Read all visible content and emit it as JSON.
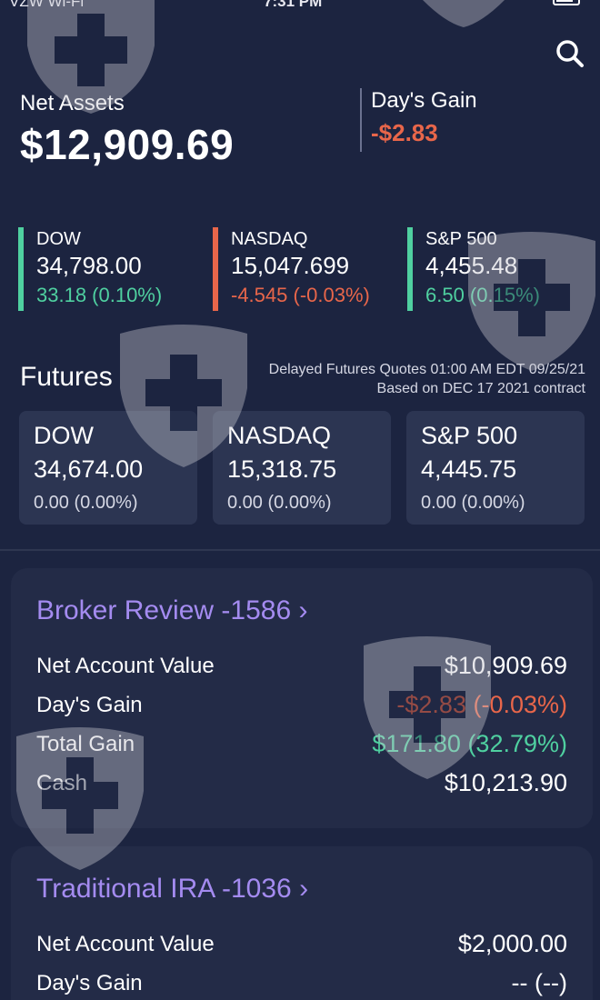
{
  "status_bar": {
    "carrier": "VZW Wi-Fi",
    "time": "7:31 PM"
  },
  "colors": {
    "background": "#1c2440",
    "negative": "#e8664a",
    "positive": "#4fd0a0",
    "accent": "#a48bf0",
    "card": "#232b47"
  },
  "icons": {
    "search": "search-icon",
    "chevron": "chevron-right-icon",
    "watermark": "shield-plus-icon"
  },
  "summary": {
    "net_assets_label": "Net Assets",
    "net_assets_value": "$12,909.69",
    "days_gain_label": "Day's Gain",
    "days_gain_value": "-$2.83"
  },
  "indices": [
    {
      "name": "DOW",
      "price": "34,798.00",
      "change": "33.18 (0.10%)",
      "trend": "up"
    },
    {
      "name": "NASDAQ",
      "price": "15,047.699",
      "change": "-4.545 (-0.03%)",
      "trend": "down"
    },
    {
      "name": "S&P 500",
      "price": "4,455.48",
      "change": "6.50 (0.15%)",
      "trend": "up"
    }
  ],
  "futures": {
    "title": "Futures",
    "note_line1": "Delayed Futures Quotes 01:00 AM EDT 09/25/21",
    "note_line2": "Based on DEC 17 2021 contract",
    "items": [
      {
        "name": "DOW",
        "price": "34,674.00",
        "change": "0.00 (0.00%)"
      },
      {
        "name": "NASDAQ",
        "price": "15,318.75",
        "change": "0.00 (0.00%)"
      },
      {
        "name": "S&P 500",
        "price": "4,445.75",
        "change": "0.00 (0.00%)"
      }
    ]
  },
  "accounts": [
    {
      "title": "Broker Review -1586",
      "rows": [
        {
          "label": "Net Account Value",
          "value": "$10,909.69",
          "tone": "neutral"
        },
        {
          "label": "Day's Gain",
          "value": "-$2.83 (-0.03%)",
          "tone": "negative"
        },
        {
          "label": "Total Gain",
          "value": "$171.80 (32.79%)",
          "tone": "positive"
        },
        {
          "label": "Cash",
          "value": "$10,213.90",
          "tone": "neutral"
        }
      ]
    },
    {
      "title": "Traditional IRA -1036",
      "rows": [
        {
          "label": "Net Account Value",
          "value": "$2,000.00",
          "tone": "neutral"
        },
        {
          "label": "Day's Gain",
          "value": "-- (--)",
          "tone": "neutral"
        }
      ]
    }
  ]
}
